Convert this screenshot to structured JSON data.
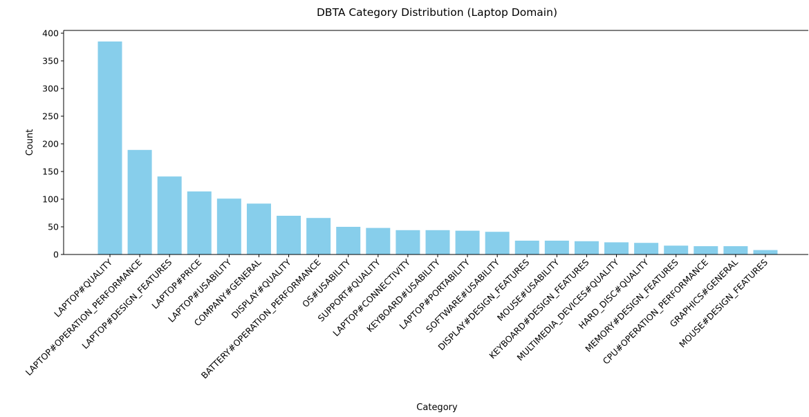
{
  "chart_data": {
    "type": "bar",
    "title": "DBTA Category Distribution (Laptop Domain)",
    "x_label": "Category",
    "y_label": "Count",
    "categories": [
      "LAPTOP#QUALITY",
      "LAPTOP#OPERATION_PERFORMANCE",
      "LAPTOP#DESIGN_FEATURES",
      "LAPTOP#PRICE",
      "LAPTOP#USABILITY",
      "COMPANY#GENERAL",
      "DISPLAY#QUALITY",
      "BATTERY#OPERATION_PERFORMANCE",
      "OS#USABILITY",
      "SUPPORT#QUALITY",
      "LAPTOP#CONNECTIVITY",
      "KEYBOARD#USABILITY",
      "LAPTOP#PORTABILITY",
      "SOFTWARE#USABILITY",
      "DISPLAY#DESIGN_FEATURES",
      "MOUSE#USABILITY",
      "KEYBOARD#DESIGN_FEATURES",
      "MULTIMEDIA_DEVICES#QUALITY",
      "HARD_DISC#QUALITY",
      "MEMORY#DESIGN_FEATURES",
      "CPU#OPERATION_PERFORMANCE",
      "GRAPHICS#GENERAL",
      "MOUSE#DESIGN_FEATURES"
    ],
    "values": [
      385,
      189,
      141,
      114,
      101,
      92,
      70,
      66,
      50,
      48,
      44,
      44,
      43,
      41,
      25,
      25,
      24,
      22,
      21,
      16,
      15,
      15,
      8
    ],
    "color": "#87ceeb",
    "ylim": [
      0,
      405
    ],
    "yticks": [
      0,
      50,
      100,
      150,
      200,
      250,
      300,
      350,
      400
    ],
    "grid": false
  }
}
